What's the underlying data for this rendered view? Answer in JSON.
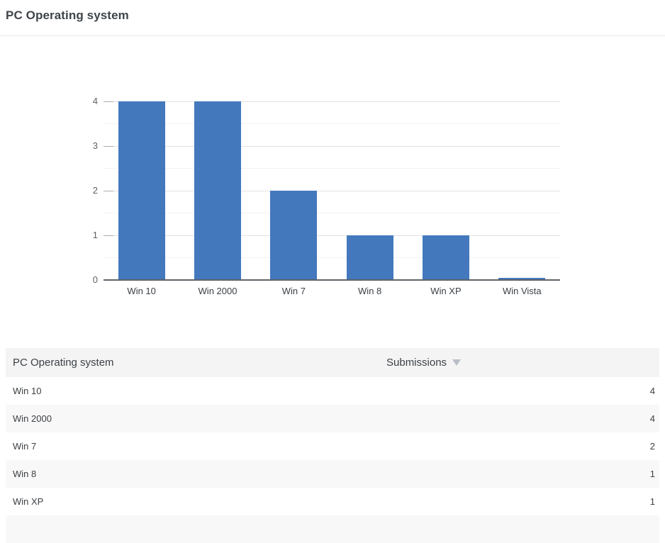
{
  "page": {
    "title": "PC Operating system"
  },
  "chart_data": {
    "type": "bar",
    "title": "PC Operating system",
    "categories": [
      "Win 10",
      "Win 2000",
      "Win 7",
      "Win 8",
      "Win XP",
      "Win Vista"
    ],
    "values": [
      4,
      4,
      2,
      1,
      1,
      0
    ],
    "xlabel": "",
    "ylabel": "",
    "ylim": [
      0,
      4
    ],
    "yticks": [
      0,
      1,
      2,
      3,
      4
    ],
    "minor_yticks": [
      0.5,
      1.5,
      2.5,
      3.5
    ],
    "grid": true,
    "legend": "none",
    "bar_color": "#4478bd"
  },
  "table": {
    "columns": [
      {
        "label": "PC Operating system"
      },
      {
        "label": "Submissions",
        "sort": "desc"
      }
    ],
    "rows": [
      {
        "label": "Win 10",
        "value": "4"
      },
      {
        "label": "Win 2000",
        "value": "4"
      },
      {
        "label": "Win 7",
        "value": "2"
      },
      {
        "label": "Win 8",
        "value": "1"
      },
      {
        "label": "Win XP",
        "value": "1"
      }
    ]
  },
  "colors": {
    "bar": "#4478bd",
    "gridline_major": "#e2e2e2",
    "gridline_minor": "#f2f2f2",
    "axis_baseline": "#5f6368",
    "header_bg": "#f4f4f5",
    "stripe_bg": "#f8f8f9"
  }
}
